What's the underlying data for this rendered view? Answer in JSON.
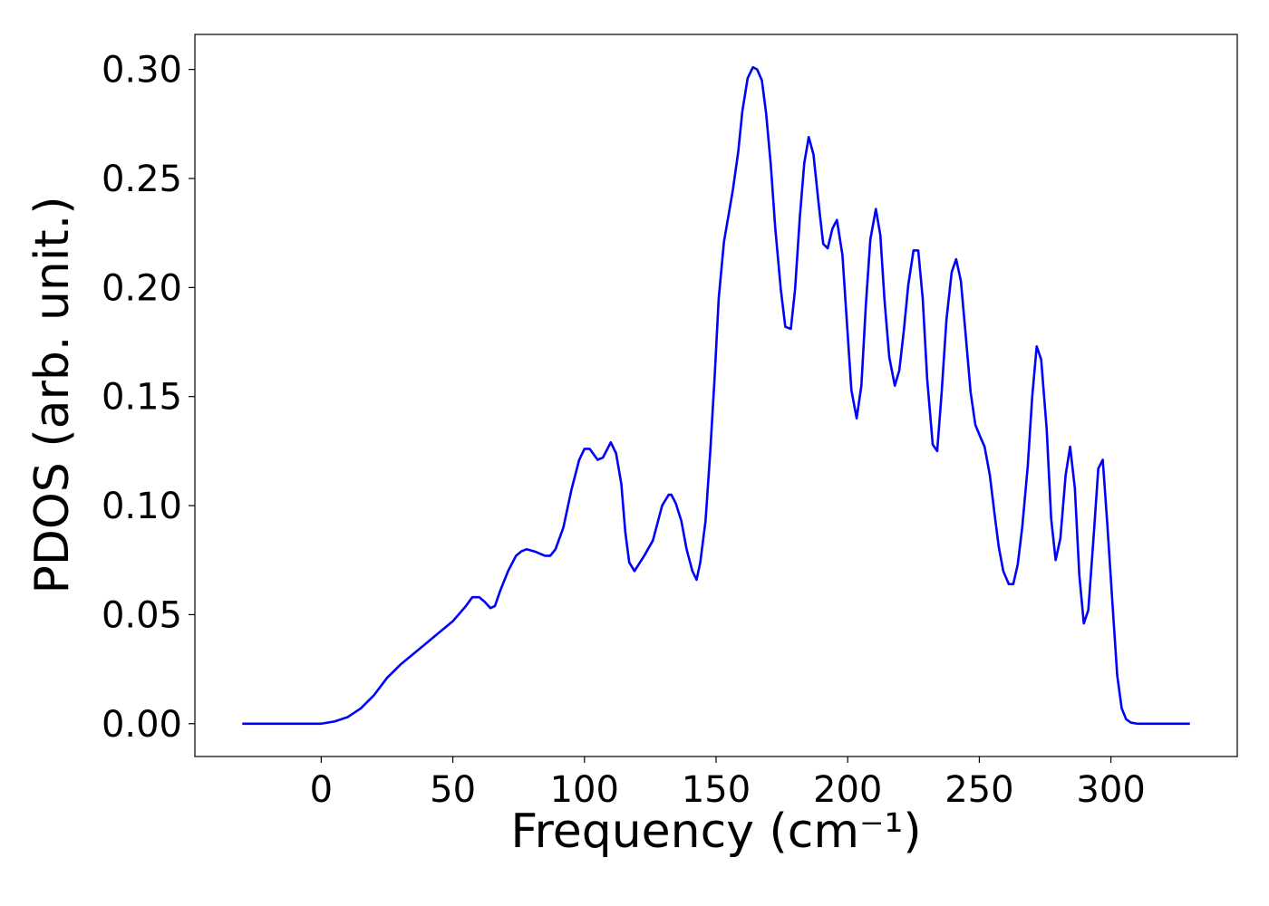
{
  "chart_data": {
    "type": "line",
    "xlabel": "Frequency (cm⁻¹)",
    "ylabel": "PDOS (arb. unit.)",
    "xlim": [
      -48,
      348
    ],
    "ylim": [
      -0.01505,
      0.31605
    ],
    "xticks": [
      0,
      50,
      100,
      150,
      200,
      250,
      300
    ],
    "yticks": [
      {
        "value": 0,
        "label": "0.00"
      },
      {
        "value": 0.05,
        "label": "0.05"
      },
      {
        "value": 0.1,
        "label": "0.10"
      },
      {
        "value": 0.15,
        "label": "0.15"
      },
      {
        "value": 0.2,
        "label": "0.20"
      },
      {
        "value": 0.25,
        "label": "0.25"
      },
      {
        "value": 0.3,
        "label": "0.30"
      }
    ],
    "grid": false,
    "x": [
      -30,
      -20,
      -10,
      0,
      5,
      10,
      15,
      20,
      25,
      30,
      35,
      40,
      45,
      50,
      55,
      57.4,
      60,
      62,
      64.3,
      66,
      68,
      71,
      74,
      76,
      78,
      81,
      85,
      87,
      89,
      92,
      95,
      98,
      100,
      102,
      105,
      107,
      110,
      112,
      114,
      115.5,
      117,
      119,
      122.7,
      126,
      129.5,
      132,
      133,
      134.7,
      136.8,
      138.8,
      141,
      142.6,
      144,
      146,
      147.8,
      149.5,
      151,
      153,
      155,
      156.4,
      158.4,
      160,
      162,
      164,
      165.6,
      167.4,
      169,
      170.8,
      172.5,
      174.6,
      176.3,
      178.4,
      180,
      181.8,
      183.5,
      185.2,
      187,
      189,
      190.7,
      192.4,
      194.2,
      195.9,
      198,
      199.7,
      201.4,
      203.4,
      205.2,
      206.9,
      208.6,
      210.7,
      212.4,
      214,
      215.8,
      217.9,
      219.6,
      221.3,
      223,
      225,
      226.8,
      228.5,
      230.2,
      232.3,
      234,
      235.7,
      237.5,
      239.5,
      241.2,
      243,
      244.7,
      246.7,
      248.5,
      250.2,
      252,
      254,
      255.7,
      257.4,
      259.1,
      261.2,
      262.9,
      264.6,
      266.3,
      268.4,
      270.1,
      271.8,
      273.5,
      275.6,
      277.3,
      279,
      280.8,
      282.8,
      284.5,
      286.3,
      288,
      289.7,
      291.4,
      293.5,
      295.2,
      296.9,
      298.6,
      300.7,
      302.4,
      304.1,
      305.8,
      307.6,
      310,
      320,
      330
    ],
    "series": [
      {
        "name": "PDOS",
        "color": "#0000ff",
        "values": [
          0,
          0,
          0,
          0,
          0.001,
          0.003,
          0.007,
          0.013,
          0.021,
          0.027,
          0.032,
          0.037,
          0.042,
          0.047,
          0.054,
          0.058,
          0.058,
          0.056,
          0.053,
          0.054,
          0.061,
          0.07,
          0.077,
          0.079,
          0.08,
          0.079,
          0.077,
          0.077,
          0.08,
          0.09,
          0.107,
          0.121,
          0.126,
          0.126,
          0.121,
          0.122,
          0.129,
          0.124,
          0.11,
          0.088,
          0.074,
          0.07,
          0.077,
          0.084,
          0.1,
          0.105,
          0.105,
          0.101,
          0.093,
          0.08,
          0.07,
          0.066,
          0.074,
          0.093,
          0.125,
          0.16,
          0.195,
          0.221,
          0.235,
          0.245,
          0.262,
          0.281,
          0.296,
          0.301,
          0.3,
          0.295,
          0.28,
          0.256,
          0.227,
          0.199,
          0.182,
          0.181,
          0.199,
          0.232,
          0.257,
          0.269,
          0.261,
          0.238,
          0.22,
          0.218,
          0.227,
          0.231,
          0.215,
          0.184,
          0.153,
          0.14,
          0.155,
          0.192,
          0.222,
          0.236,
          0.224,
          0.194,
          0.168,
          0.155,
          0.162,
          0.18,
          0.201,
          0.217,
          0.217,
          0.195,
          0.158,
          0.128,
          0.125,
          0.152,
          0.185,
          0.207,
          0.213,
          0.203,
          0.18,
          0.152,
          0.137,
          0.132,
          0.127,
          0.114,
          0.097,
          0.081,
          0.07,
          0.064,
          0.064,
          0.073,
          0.09,
          0.118,
          0.15,
          0.173,
          0.167,
          0.135,
          0.094,
          0.075,
          0.085,
          0.114,
          0.127,
          0.108,
          0.068,
          0.046,
          0.052,
          0.087,
          0.117,
          0.121,
          0.092,
          0.053,
          0.022,
          0.007,
          0.002,
          0.0005,
          0,
          0,
          0
        ]
      }
    ]
  }
}
